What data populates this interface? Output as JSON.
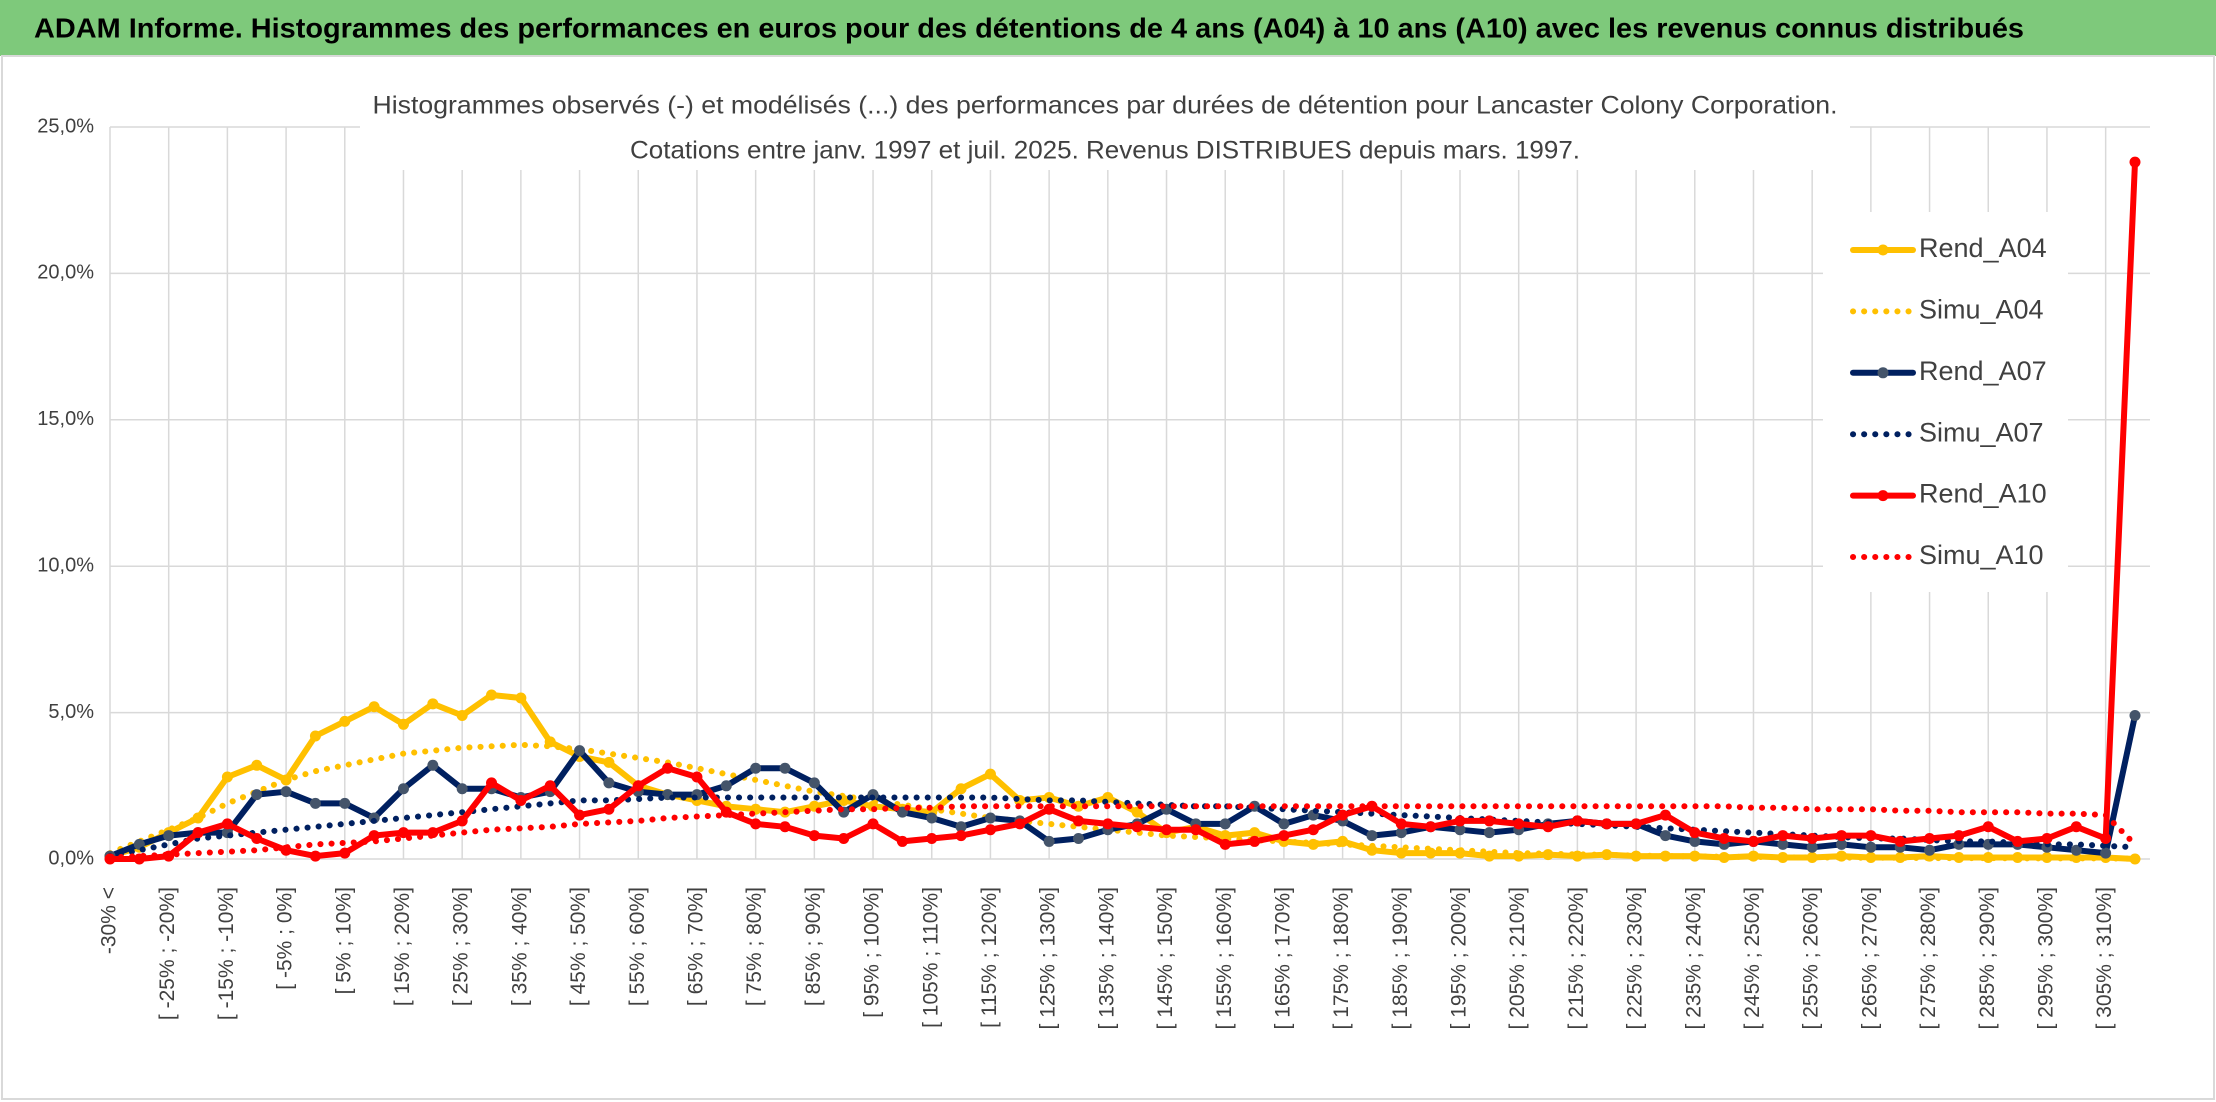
{
  "chart_data": {
    "type": "line",
    "title": "ADAM Informe. Histogrammes des performances en euros pour des détentions de 4 ans (A04) à 10 ans (A10) avec les revenus connus distribués",
    "subtitle": [
      "Histogrammes observés (-) et modélisés (...) des performances par durées de détention pour Lancaster Colony Corporation.",
      "Cotations entre janv. 1997 et juil. 2025. Revenus DISTRIBUES depuis mars. 1997."
    ],
    "categories": [
      "-30% <",
      null,
      "[ -25% ; -20%]",
      null,
      "[ -15% ; -10%]",
      null,
      "[ -5% ; 0%]",
      null,
      "[ 5% ; 10%]",
      null,
      "[ 15% ; 20%]",
      null,
      "[ 25% ; 30%]",
      null,
      "[ 35% ; 40%]",
      null,
      "[ 45% ; 50%]",
      null,
      "[ 55% ; 60%]",
      null,
      "[ 65% ; 70%]",
      null,
      "[ 75% ; 80%]",
      null,
      "[ 85% ; 90%]",
      null,
      "[ 95% ; 100%]",
      null,
      "[ 105% ; 110%]",
      null,
      "[ 115% ; 120%]",
      null,
      "[ 125% ; 130%]",
      null,
      "[ 135% ; 140%]",
      null,
      "[ 145% ; 150%]",
      null,
      "[ 155% ; 160%]",
      null,
      "[ 165% ; 170%]",
      null,
      "[ 175% ; 180%]",
      null,
      "[ 185% ; 190%]",
      null,
      "[ 195% ; 200%]",
      null,
      "[ 205% ; 210%]",
      null,
      "[ 215% ; 220%]",
      null,
      "[ 225% ; 230%]",
      null,
      "[ 235% ; 240%]",
      null,
      "[ 245% ; 250%]",
      null,
      "[ 255% ; 260%]",
      null,
      "[ 265% ; 270%]",
      null,
      "[ 275% ; 280%]",
      null,
      "[ 285% ; 290%]",
      null,
      "[ 295% ; 300%]",
      null,
      "[ 305% ; 310%]",
      null
    ],
    "series": [
      {
        "name": "Rend_A04",
        "color": "#ffc000",
        "line_style": "solid",
        "marker": true,
        "values": [
          0.1,
          0.4,
          0.9,
          1.4,
          2.8,
          3.2,
          2.7,
          4.2,
          4.7,
          5.2,
          4.6,
          5.3,
          4.9,
          5.6,
          5.5,
          4.0,
          3.5,
          3.3,
          2.5,
          2.2,
          2.0,
          1.8,
          1.7,
          1.6,
          1.8,
          2.0,
          1.8,
          1.7,
          1.6,
          2.4,
          2.9,
          2.0,
          2.1,
          1.8,
          2.1,
          1.6,
          0.9,
          1.1,
          0.8,
          0.9,
          0.6,
          0.5,
          0.6,
          0.3,
          0.2,
          0.2,
          0.2,
          0.1,
          0.1,
          0.15,
          0.1,
          0.15,
          0.1,
          0.1,
          0.1,
          0.05,
          0.1,
          0.05,
          0.05,
          0.1,
          0.05,
          0.05,
          0.1,
          0.05,
          0.05,
          0.05,
          0.05,
          0.05,
          0.05,
          0.0
        ]
      },
      {
        "name": "Simu_A04",
        "color": "#ffc000",
        "line_style": "dotted",
        "marker": false,
        "values": [
          0.2,
          0.6,
          1.0,
          1.4,
          1.9,
          2.3,
          2.7,
          3.0,
          3.2,
          3.4,
          3.6,
          3.7,
          3.8,
          3.85,
          3.9,
          3.85,
          3.75,
          3.6,
          3.45,
          3.3,
          3.1,
          2.9,
          2.7,
          2.5,
          2.3,
          2.15,
          2.0,
          1.85,
          1.7,
          1.55,
          1.4,
          1.3,
          1.2,
          1.1,
          1.0,
          0.9,
          0.8,
          0.75,
          0.7,
          0.65,
          0.6,
          0.55,
          0.5,
          0.45,
          0.4,
          0.35,
          0.3,
          0.25,
          0.2,
          0.18,
          0.16,
          0.14,
          0.12,
          0.1,
          0.09,
          0.08,
          0.07,
          0.06,
          0.05,
          0.05,
          0.04,
          0.04,
          0.03,
          0.03,
          0.03,
          0.02,
          0.02,
          0.02,
          0.02,
          0.01
        ]
      },
      {
        "name": "Rend_A07",
        "color": "#002060",
        "marker_color": "#44546a",
        "line_style": "solid",
        "marker": true,
        "values": [
          0.1,
          0.5,
          0.8,
          0.9,
          0.9,
          2.2,
          2.3,
          1.9,
          1.9,
          1.4,
          2.4,
          3.2,
          2.4,
          2.4,
          2.1,
          2.3,
          3.7,
          2.6,
          2.3,
          2.2,
          2.2,
          2.5,
          3.1,
          3.1,
          2.6,
          1.6,
          2.2,
          1.6,
          1.4,
          1.1,
          1.4,
          1.3,
          0.6,
          0.7,
          1.0,
          1.2,
          1.7,
          1.2,
          1.2,
          1.8,
          1.2,
          1.5,
          1.3,
          0.8,
          0.9,
          1.1,
          1.0,
          0.9,
          1.0,
          1.2,
          1.3,
          1.2,
          1.2,
          0.8,
          0.6,
          0.5,
          0.6,
          0.5,
          0.4,
          0.5,
          0.4,
          0.4,
          0.3,
          0.5,
          0.5,
          0.5,
          0.4,
          0.3,
          0.2,
          4.9
        ]
      },
      {
        "name": "Simu_A07",
        "color": "#002060",
        "line_style": "dotted",
        "marker": false,
        "values": [
          0.1,
          0.3,
          0.5,
          0.7,
          0.8,
          0.9,
          1.0,
          1.1,
          1.2,
          1.3,
          1.4,
          1.5,
          1.6,
          1.7,
          1.8,
          1.9,
          2.0,
          2.0,
          2.05,
          2.1,
          2.1,
          2.1,
          2.1,
          2.1,
          2.1,
          2.1,
          2.1,
          2.1,
          2.1,
          2.1,
          2.1,
          2.05,
          2.0,
          2.0,
          1.95,
          1.9,
          1.85,
          1.8,
          1.8,
          1.75,
          1.7,
          1.65,
          1.6,
          1.55,
          1.5,
          1.45,
          1.4,
          1.35,
          1.3,
          1.25,
          1.2,
          1.15,
          1.1,
          1.05,
          1.0,
          0.95,
          0.9,
          0.85,
          0.8,
          0.75,
          0.7,
          0.7,
          0.65,
          0.6,
          0.6,
          0.55,
          0.5,
          0.5,
          0.45,
          0.4
        ]
      },
      {
        "name": "Rend_A10",
        "color": "#ff0000",
        "line_style": "solid",
        "marker": true,
        "values": [
          0.0,
          0.0,
          0.1,
          0.9,
          1.2,
          0.7,
          0.3,
          0.1,
          0.2,
          0.8,
          0.9,
          0.9,
          1.3,
          2.6,
          2.0,
          2.5,
          1.5,
          1.7,
          2.5,
          3.1,
          2.8,
          1.6,
          1.2,
          1.1,
          0.8,
          0.7,
          1.2,
          0.6,
          0.7,
          0.8,
          1.0,
          1.2,
          1.7,
          1.3,
          1.2,
          1.1,
          1.0,
          1.0,
          0.5,
          0.6,
          0.8,
          1.0,
          1.5,
          1.8,
          1.2,
          1.1,
          1.3,
          1.3,
          1.2,
          1.1,
          1.3,
          1.2,
          1.2,
          1.5,
          0.9,
          0.7,
          0.6,
          0.8,
          0.7,
          0.8,
          0.8,
          0.6,
          0.7,
          0.8,
          1.1,
          0.6,
          0.7,
          1.1,
          0.7,
          23.8
        ]
      },
      {
        "name": "Simu_A10",
        "color": "#ff0000",
        "line_style": "dotted",
        "marker": false,
        "values": [
          0.05,
          0.1,
          0.15,
          0.2,
          0.25,
          0.3,
          0.4,
          0.5,
          0.55,
          0.6,
          0.7,
          0.8,
          0.9,
          1.0,
          1.05,
          1.1,
          1.2,
          1.25,
          1.3,
          1.4,
          1.45,
          1.5,
          1.55,
          1.6,
          1.65,
          1.7,
          1.7,
          1.75,
          1.75,
          1.8,
          1.8,
          1.8,
          1.8,
          1.8,
          1.8,
          1.8,
          1.8,
          1.8,
          1.8,
          1.8,
          1.8,
          1.8,
          1.8,
          1.8,
          1.8,
          1.8,
          1.8,
          1.8,
          1.8,
          1.8,
          1.8,
          1.8,
          1.8,
          1.8,
          1.8,
          1.8,
          1.75,
          1.75,
          1.7,
          1.7,
          1.7,
          1.65,
          1.65,
          1.6,
          1.6,
          1.6,
          1.55,
          1.55,
          1.5,
          0.5
        ]
      }
    ],
    "ylim": [
      0,
      25
    ],
    "yticks": [
      {
        "value": 0,
        "label": "0,0%"
      },
      {
        "value": 5,
        "label": "5,0%"
      },
      {
        "value": 10,
        "label": "10,0%"
      },
      {
        "value": 15,
        "label": "15,0%"
      },
      {
        "value": 20,
        "label": "20,0%"
      },
      {
        "value": 25,
        "label": "25,0%"
      }
    ],
    "grid": true,
    "legend": "right"
  }
}
